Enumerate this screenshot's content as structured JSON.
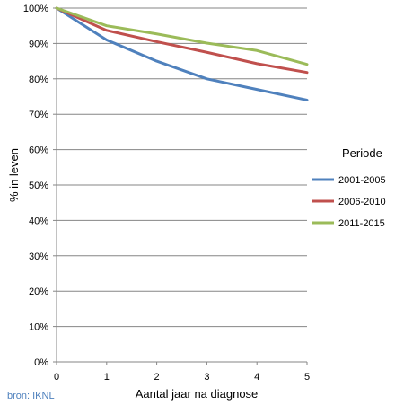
{
  "chart_data": {
    "type": "line",
    "title": "",
    "xlabel": "Aantal jaar na diagnose",
    "ylabel": "% in leven",
    "x": [
      0,
      1,
      2,
      3,
      4,
      5
    ],
    "x_ticks": [
      "0",
      "1",
      "2",
      "3",
      "4",
      "5"
    ],
    "xlim": [
      0,
      5
    ],
    "ylim": [
      0,
      100
    ],
    "y_ticks": [
      "0%",
      "10%",
      "20%",
      "30%",
      "40%",
      "50%",
      "60%",
      "70%",
      "80%",
      "90%",
      "100%"
    ],
    "grid": true,
    "legend": {
      "title": "Periode",
      "placement": "right"
    },
    "series": [
      {
        "name": "2001-2005",
        "color": "#4f81bd",
        "values": [
          100,
          91,
          85,
          80,
          77,
          74
        ]
      },
      {
        "name": "2006-2010",
        "color": "#c0504d",
        "values": [
          100,
          93.7,
          90.5,
          87.5,
          84.3,
          81.8
        ]
      },
      {
        "name": "2011-2015",
        "color": "#9bbb59",
        "values": [
          100,
          95,
          92.7,
          90.1,
          88,
          84.1
        ]
      }
    ]
  },
  "source": "bron: IKNL"
}
